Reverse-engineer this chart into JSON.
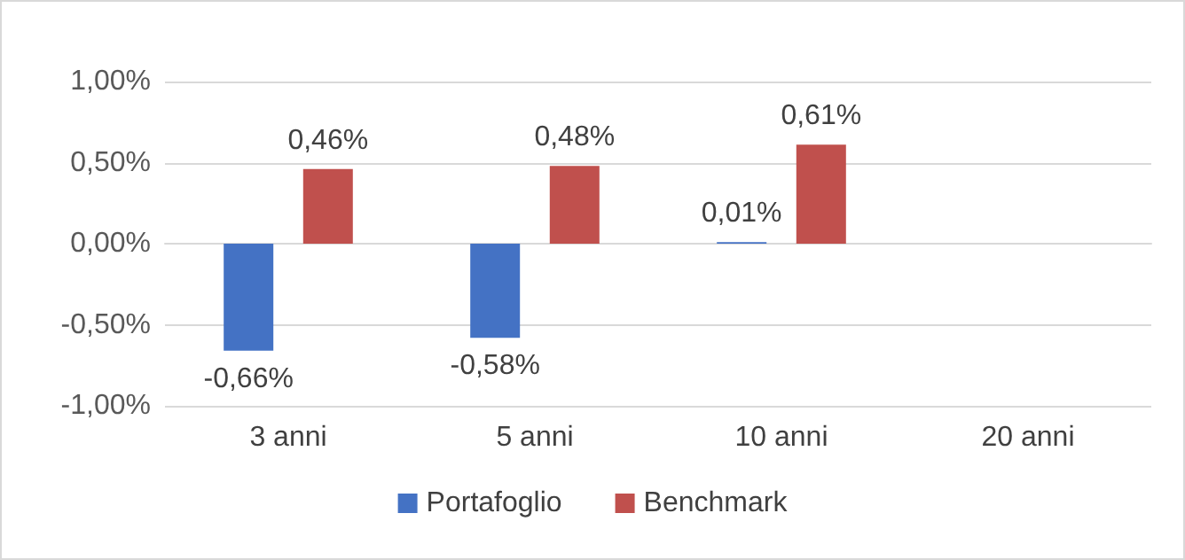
{
  "chart_data": {
    "type": "bar",
    "categories": [
      "3 anni",
      "5 anni",
      "10 anni",
      "20 anni"
    ],
    "series": [
      {
        "name": "Portafoglio",
        "color": "#4472c4",
        "values": [
          -0.66,
          -0.58,
          0.01,
          null
        ],
        "value_labels": [
          "-0,66%",
          "-0,58%",
          "0,01%",
          null
        ]
      },
      {
        "name": "Benchmark",
        "color": "#c0504d",
        "values": [
          0.46,
          0.48,
          0.61,
          null
        ],
        "value_labels": [
          "0,46%",
          "0,48%",
          "0,61%",
          null
        ]
      }
    ],
    "ylim": [
      -1,
      1
    ],
    "yticks": [
      {
        "value": -1,
        "label": "-1,00%"
      },
      {
        "value": -0.5,
        "label": "-0,50%"
      },
      {
        "value": 0,
        "label": "0,00%"
      },
      {
        "value": 0.5,
        "label": "0,50%"
      },
      {
        "value": 1,
        "label": "1,00%"
      }
    ],
    "grid": "y",
    "legend": "bottom"
  }
}
